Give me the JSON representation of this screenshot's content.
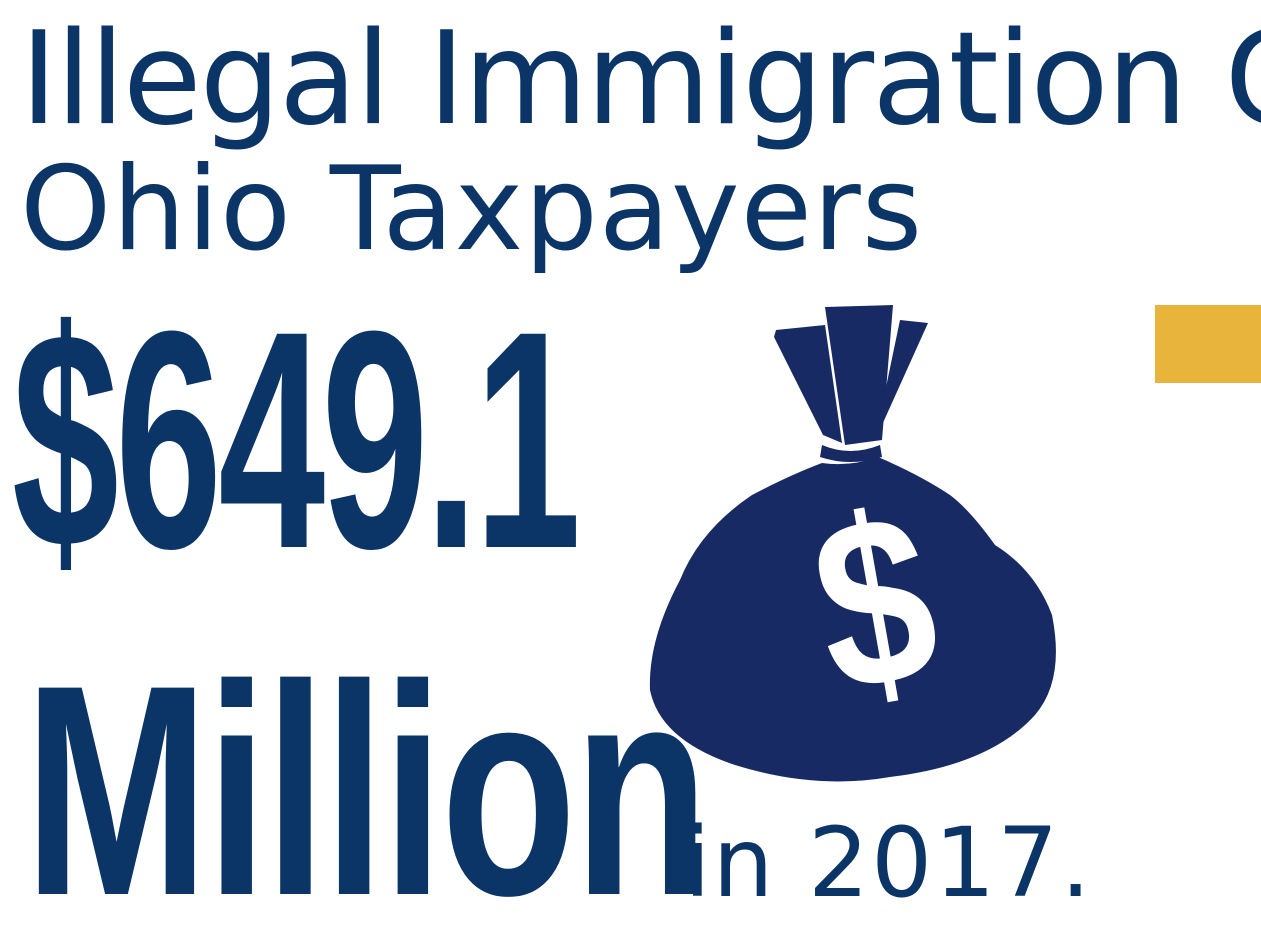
{
  "headline": {
    "line1": "Illegal Immigration Cost",
    "line2": "Ohio Taxpayers"
  },
  "amount": {
    "value": "$649.1",
    "unit": "Million",
    "period": "in 2017."
  },
  "graphic": {
    "icon": "money-bag-icon",
    "symbol": "$"
  },
  "colors": {
    "primary_text": "#0b3566",
    "bag": "#182a63",
    "accent": "#e9b43b"
  }
}
